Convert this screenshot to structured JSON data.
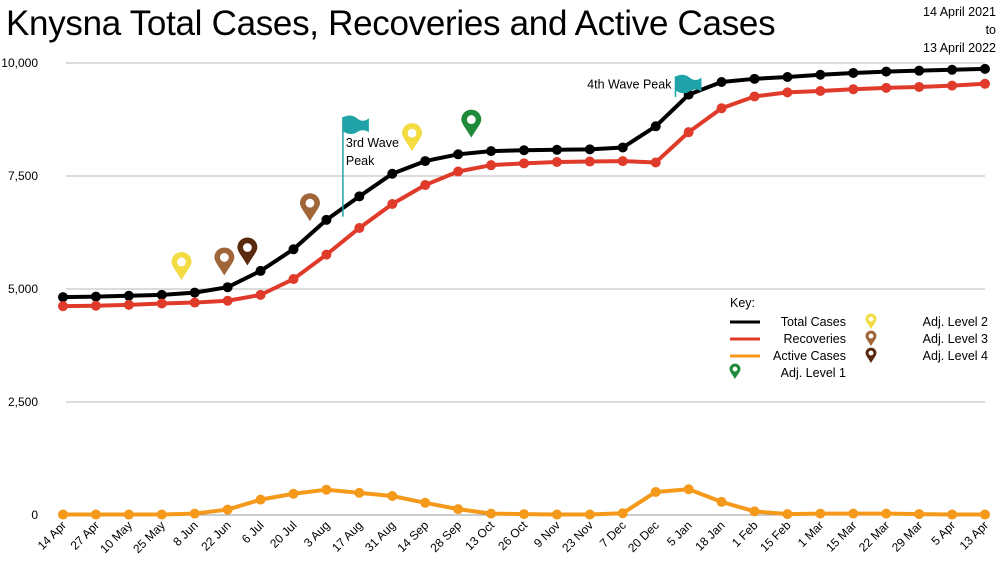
{
  "header": {
    "title": "Knysna Total Cases, Recoveries and Active Cases",
    "date_from": "14 April 2021",
    "date_to_word": "to",
    "date_to": "13 April 2022"
  },
  "chart_data": {
    "type": "line",
    "title": "Knysna Total Cases, Recoveries and Active Cases",
    "xlabel": "",
    "ylabel": "",
    "ylim": [
      0,
      10000
    ],
    "yticks": [
      0,
      2500,
      5000,
      7500,
      10000
    ],
    "ytick_labels": [
      "0",
      "2,500",
      "5,000",
      "7,500",
      "10,000"
    ],
    "grid": true,
    "legend_title": "Key:",
    "legend_position": "right",
    "categories": [
      "14 Apr",
      "27 Apr",
      "10 May",
      "25 May",
      "8 Jun",
      "22 Jun",
      "6 Jul",
      "20 Jul",
      "3 Aug",
      "17 Aug",
      "31 Aug",
      "14 Sep",
      "28 Sep",
      "13 Oct",
      "26 Oct",
      "9 Nov",
      "23 Nov",
      "7 Dec",
      "20 Dec",
      "5 Jan",
      "18 Jan",
      "1 Feb",
      "15 Feb",
      "1 Mar",
      "15 Mar",
      "22 Mar",
      "29 Mar",
      "5 Apr",
      "13 Apr"
    ],
    "x_positions": [
      0,
      1,
      2,
      3,
      4,
      5,
      6,
      7,
      8,
      9,
      10,
      11,
      12,
      13,
      14,
      15,
      16,
      17,
      18,
      19,
      20,
      21,
      22,
      23,
      24,
      25,
      26,
      27,
      28
    ],
    "series": [
      {
        "name": "Total Cases",
        "color": "#000000",
        "x": [
          0,
          1,
          2,
          3,
          4,
          5,
          6,
          7,
          8,
          9,
          10,
          11,
          12,
          13,
          14,
          15,
          16,
          17,
          18,
          19,
          20,
          21,
          22,
          23,
          24,
          25,
          26,
          27,
          28
        ],
        "values": [
          4820,
          4830,
          4850,
          4870,
          4920,
          5040,
          5400,
          5880,
          6530,
          7050,
          7550,
          7830,
          7980,
          8050,
          8070,
          8080,
          8090,
          8130,
          8600,
          9300,
          9580,
          9650,
          9690,
          9740,
          9780,
          9810,
          9830,
          9850,
          9870
        ]
      },
      {
        "name": "Recoveries",
        "color": "#e03b2a",
        "x": [
          0,
          1,
          2,
          3,
          4,
          5,
          6,
          7,
          8,
          9,
          10,
          11,
          12,
          13,
          14,
          15,
          16,
          17,
          18,
          19,
          20,
          21,
          22,
          23,
          24,
          25,
          26,
          27,
          28
        ],
        "values": [
          4620,
          4630,
          4650,
          4680,
          4700,
          4740,
          4870,
          5220,
          5760,
          6350,
          6880,
          7300,
          7600,
          7740,
          7780,
          7810,
          7820,
          7830,
          7800,
          8470,
          9000,
          9260,
          9350,
          9380,
          9420,
          9450,
          9470,
          9500,
          9540
        ]
      },
      {
        "name": "Active Cases",
        "color": "#f5991b",
        "x": [
          0,
          1,
          2,
          3,
          4,
          5,
          6,
          7,
          8,
          9,
          10,
          11,
          12,
          13,
          14,
          15,
          16,
          17,
          18,
          19,
          20,
          21,
          22,
          23,
          24,
          25,
          26,
          27,
          28
        ],
        "values": [
          10,
          10,
          10,
          10,
          30,
          120,
          340,
          470,
          560,
          490,
          420,
          270,
          130,
          30,
          20,
          10,
          10,
          40,
          510,
          570,
          290,
          80,
          20,
          30,
          30,
          30,
          20,
          10,
          10
        ]
      }
    ],
    "annotations": [
      {
        "text": "3rd Wave Peak",
        "lines": [
          "3rd Wave",
          "Peak"
        ],
        "x": 8.5,
        "y": 8800,
        "marker": "flag",
        "flag_color": "#1fa3a8"
      },
      {
        "text": "4th Wave Peak",
        "lines": [
          "4th Wave Peak"
        ],
        "x": 18.6,
        "y": 9700,
        "marker": "flag",
        "flag_color": "#1fa3a8"
      }
    ],
    "level_markers": [
      {
        "x": 3.6,
        "y": 5200,
        "level": "Adj. Level 2",
        "color": "#f2dc42"
      },
      {
        "x": 4.9,
        "y": 5300,
        "level": "Adj. Level 3",
        "color": "#a0663a"
      },
      {
        "x": 5.6,
        "y": 5520,
        "level": "Adj. Level 4",
        "color": "#5a2a0e"
      },
      {
        "x": 7.5,
        "y": 6500,
        "level": "Adj. Level 3",
        "color": "#a0663a"
      },
      {
        "x": 10.6,
        "y": 8050,
        "level": "Adj. Level 2",
        "color": "#f2dc42"
      },
      {
        "x": 12.4,
        "y": 8350,
        "level": "Adj. Level 1",
        "color": "#1f8a3a"
      }
    ],
    "legend_items": [
      {
        "label": "Total Cases",
        "kind": "line",
        "color": "#000000"
      },
      {
        "label": "Recoveries",
        "kind": "line",
        "color": "#e03b2a"
      },
      {
        "label": "Active Cases",
        "kind": "line",
        "color": "#f5991b"
      },
      {
        "label": "Adj. Level 1",
        "kind": "pin",
        "color": "#1f8a3a"
      },
      {
        "label": "Adj. Level 2",
        "kind": "pin",
        "color": "#f2dc42"
      },
      {
        "label": "Adj. Level 3",
        "kind": "pin",
        "color": "#a0663a"
      },
      {
        "label": "Adj. Level 4",
        "kind": "pin",
        "color": "#5a2a0e"
      }
    ]
  }
}
